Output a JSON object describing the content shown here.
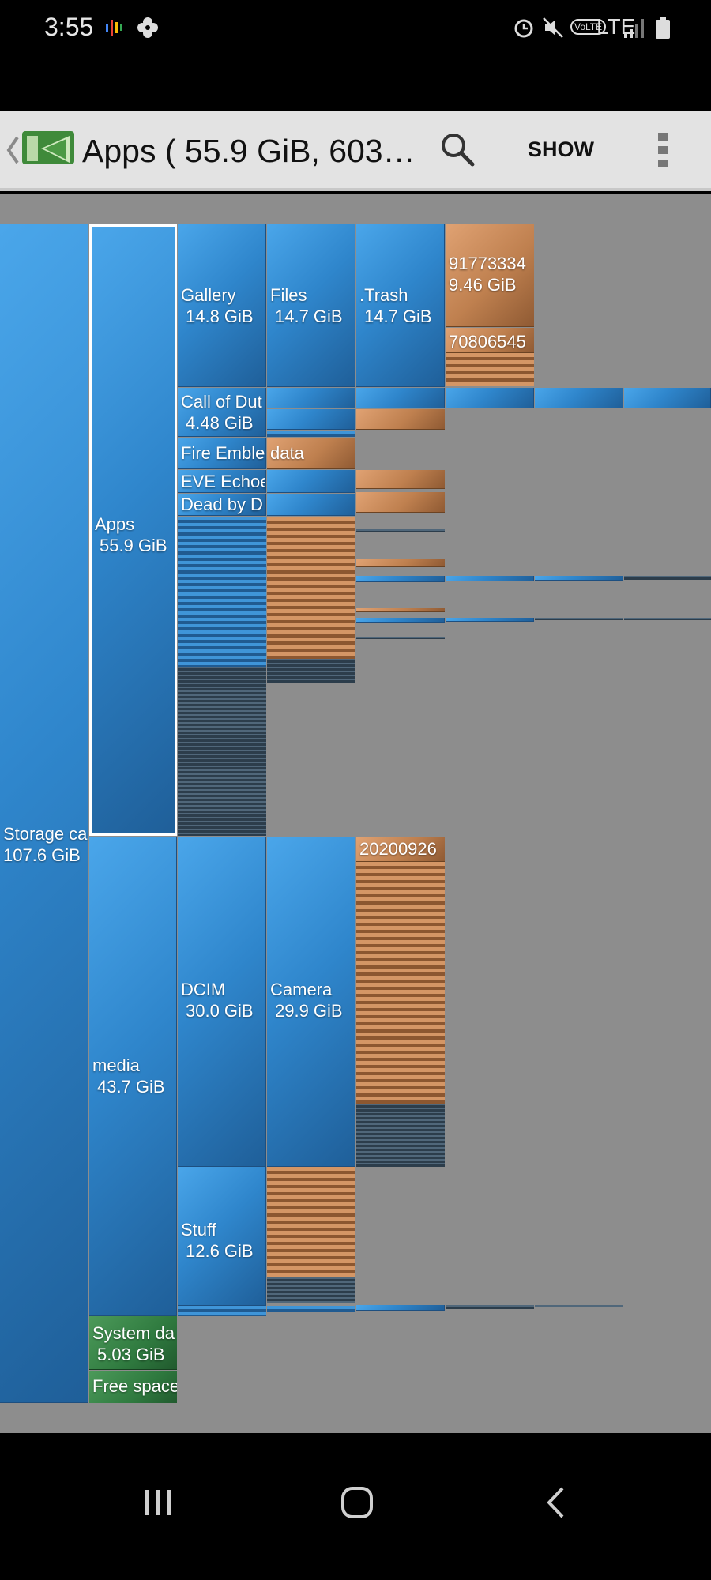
{
  "status_bar": {
    "time": "3:55",
    "network": "LTE",
    "volte": "VoLTE",
    "icons": [
      "podcast-icon",
      "pinwheel-icon",
      "alarm-icon",
      "mute-icon",
      "volte-icon",
      "signal-icon",
      "battery-icon"
    ]
  },
  "app_bar": {
    "title": "Apps ( 55.9 GiB, 603…",
    "show_label": "SHOW",
    "icons": [
      "back-chevron-icon",
      "app-logo-icon",
      "search-icon",
      "overflow-menu-icon"
    ]
  },
  "treemap": {
    "storage": {
      "name": "Storage ca",
      "size": "107.6 GiB"
    },
    "apps": {
      "name": "Apps",
      "size": "55.9 GiB"
    },
    "gallery": {
      "name": "Gallery",
      "size": "14.8 GiB"
    },
    "files": {
      "name": "Files",
      "size": "14.7 GiB"
    },
    "trash": {
      "name": ".Trash",
      "size": "14.7 GiB"
    },
    "file_a": {
      "name": "91773334",
      "size": "9.46 GiB"
    },
    "file_b": {
      "name": "70806545"
    },
    "call_of_duty": {
      "name": "Call of Dut",
      "size": "4.48 GiB"
    },
    "fire_emblem": {
      "name": "Fire Emble"
    },
    "data_dir": {
      "name": "data"
    },
    "eve_echoes": {
      "name": "EVE Echoe"
    },
    "dead_by_daylight": {
      "name": "Dead by D"
    },
    "media": {
      "name": "media",
      "size": "43.7 GiB"
    },
    "dcim": {
      "name": "DCIM",
      "size": "30.0 GiB"
    },
    "camera": {
      "name": "Camera",
      "size": "29.9 GiB"
    },
    "camera_file": {
      "name": "20200926"
    },
    "stuff": {
      "name": "Stuff",
      "size": "12.6 GiB"
    },
    "system_data": {
      "name": "System da",
      "size": "5.03 GiB"
    },
    "free_space": {
      "name": "Free space"
    }
  },
  "colors": {
    "folder": "#2f86cc",
    "file": "#bf804f",
    "system": "#2f7a3f",
    "background": "#8d8d8d",
    "selected_outline": "#ffffff"
  },
  "nav_bar": {
    "icons": [
      "recents-icon",
      "home-icon",
      "back-icon"
    ]
  }
}
